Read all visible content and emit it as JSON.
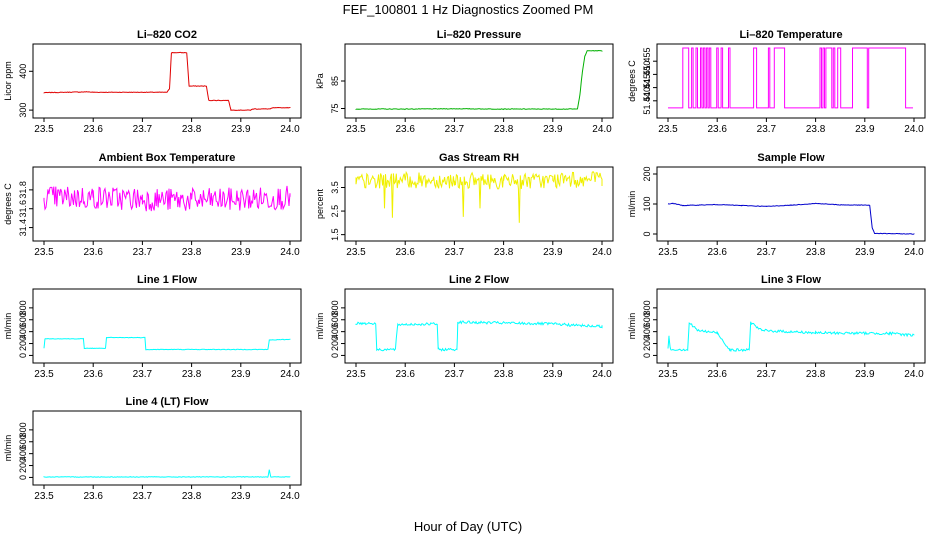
{
  "figure": {
    "title": "FEF_100801  1 Hz Diagnostics Zoomed PM",
    "xlabel": "Hour of Day (UTC)"
  },
  "chart_data": [
    {
      "type": "line",
      "title": "Li–820 CO2",
      "ylabel": "Licor ppm",
      "color": "#e00000",
      "xlim": [
        23.5,
        24.0
      ],
      "ylim": [
        290,
        460
      ],
      "xticks": [
        "23.5",
        "23.6",
        "23.7",
        "23.8",
        "23.9",
        "24.0"
      ],
      "yticks": [
        {
          "v": 300,
          "label": "300"
        },
        {
          "v": 400,
          "label": "400"
        }
      ],
      "series": [
        {
          "x": [
            23.5,
            23.59,
            23.6,
            23.75,
            23.755,
            23.759,
            23.76,
            23.79,
            23.795,
            23.83,
            23.835,
            23.875,
            23.88,
            23.92,
            23.925,
            23.96,
            23.965,
            24.0
          ],
          "y": [
            345,
            347,
            346,
            346,
            355,
            447,
            448,
            448,
            362,
            362,
            325,
            325,
            300,
            300,
            303,
            303,
            306,
            306
          ]
        }
      ]
    },
    {
      "type": "line",
      "title": "Li–820 Pressure",
      "ylabel": "kPa",
      "color": "#00b000",
      "xlim": [
        23.5,
        24.0
      ],
      "ylim": [
        73,
        97
      ],
      "xticks": [
        "23.5",
        "23.6",
        "23.7",
        "23.8",
        "23.9",
        "24.0"
      ],
      "yticks": [
        {
          "v": 75,
          "label": "75"
        },
        {
          "v": 85,
          "label": "85"
        }
      ],
      "series": [
        {
          "x": [
            23.5,
            23.6,
            23.7,
            23.8,
            23.9,
            23.95,
            23.955,
            23.96,
            23.965,
            23.97,
            23.975,
            24.0
          ],
          "y": [
            74.8,
            74.8,
            74.9,
            74.8,
            74.8,
            74.8,
            80,
            88,
            94,
            96,
            96,
            96
          ]
        }
      ]
    },
    {
      "type": "line",
      "title": "Li–820 Temperature",
      "ylabel": "degrees C",
      "color": "#ff00ff",
      "xlim": [
        23.5,
        24.0
      ],
      "ylim": [
        51.435,
        51.46
      ],
      "xticks": [
        "23.5",
        "23.6",
        "23.7",
        "23.8",
        "23.9",
        "24.0"
      ],
      "yticks": [
        {
          "v": 51.44,
          "label": "51.440"
        },
        {
          "v": 51.445,
          "label": "51.445"
        },
        {
          "v": 51.45,
          "label": "51.450"
        },
        {
          "v": 51.455,
          "label": "51.455"
        }
      ],
      "series": [
        {
          "x": [
            23.5,
            23.54,
            23.56,
            23.62,
            23.7,
            23.72,
            23.8,
            23.83,
            23.9,
            24.0
          ],
          "y": [
            51.4373,
            51.4373,
            51.46,
            51.46,
            51.4373,
            51.46,
            51.4373,
            51.46,
            51.4373,
            51.46
          ]
        }
      ]
    },
    {
      "type": "line",
      "title": "Ambient Box Temperature",
      "ylabel": "degrees C",
      "color": "#ff00ff",
      "xlim": [
        23.5,
        24.0
      ],
      "ylim": [
        31.3,
        32.0
      ],
      "xticks": [
        "23.5",
        "23.6",
        "23.7",
        "23.8",
        "23.9",
        "24.0"
      ],
      "yticks": [
        {
          "v": 31.4,
          "label": "31.4"
        },
        {
          "v": 31.6,
          "label": "31.6"
        },
        {
          "v": 31.8,
          "label": "31.8"
        }
      ],
      "series": [
        {
          "x": [
            23.5,
            23.6,
            23.7,
            23.8,
            23.9,
            24.0
          ],
          "y": [
            31.72,
            31.72,
            31.7,
            31.69,
            31.7,
            31.72
          ]
        }
      ]
    },
    {
      "type": "line",
      "title": "Gas Stream RH",
      "ylabel": "percent",
      "color": "#f0f000",
      "xlim": [
        23.5,
        24.0
      ],
      "ylim": [
        1.4,
        4.2
      ],
      "xticks": [
        "23.5",
        "23.6",
        "23.7",
        "23.8",
        "23.9",
        "24.0"
      ],
      "yticks": [
        {
          "v": 1.5,
          "label": "1.5"
        },
        {
          "v": 2.5,
          "label": "2.5"
        },
        {
          "v": 3.5,
          "label": "3.5"
        }
      ],
      "series": [
        {
          "x": [
            23.5,
            23.6,
            23.7,
            23.8,
            23.9,
            24.0
          ],
          "y": [
            3.75,
            3.8,
            3.8,
            3.75,
            3.8,
            3.85
          ]
        }
      ]
    },
    {
      "type": "line",
      "title": "Sample Flow",
      "ylabel": "ml/min",
      "color": "#0000cc",
      "xlim": [
        23.5,
        24.0
      ],
      "ylim": [
        -10,
        210
      ],
      "xticks": [
        "23.5",
        "23.6",
        "23.7",
        "23.8",
        "23.9",
        "24.0"
      ],
      "yticks": [
        {
          "v": 0,
          "label": "0"
        },
        {
          "v": 100,
          "label": "100"
        },
        {
          "v": 200,
          "label": "200"
        }
      ],
      "series": [
        {
          "x": [
            23.5,
            23.51,
            23.53,
            23.6,
            23.65,
            23.7,
            23.75,
            23.8,
            23.85,
            23.91,
            23.915,
            23.92,
            24.0
          ],
          "y": [
            100,
            102,
            95,
            98,
            95,
            92,
            96,
            102,
            97,
            96,
            20,
            2,
            0
          ]
        }
      ]
    },
    {
      "type": "line",
      "title": "Line 1 Flow",
      "ylabel": "ml/min",
      "color": "#00ffff",
      "xlim": [
        23.5,
        24.0
      ],
      "ylim": [
        -60,
        1050
      ],
      "xticks": [
        "23.5",
        "23.6",
        "23.7",
        "23.8",
        "23.9",
        "24.0"
      ],
      "yticks": [
        {
          "v": 0,
          "label": "0"
        },
        {
          "v": 200,
          "label": "200"
        },
        {
          "v": 400,
          "label": "400"
        },
        {
          "v": 600,
          "label": "600"
        },
        {
          "v": 800,
          "label": "800"
        }
      ],
      "series": [
        {
          "x": [
            23.5,
            23.502,
            23.58,
            23.582,
            23.625,
            23.627,
            23.705,
            23.707,
            23.955,
            23.958,
            24.0
          ],
          "y": [
            120,
            280,
            280,
            120,
            120,
            300,
            300,
            100,
            100,
            260,
            270
          ]
        }
      ]
    },
    {
      "type": "line",
      "title": "Line 2 Flow",
      "ylabel": "ml/min",
      "color": "#00ffff",
      "xlim": [
        23.5,
        24.0
      ],
      "ylim": [
        -60,
        1050
      ],
      "xticks": [
        "23.5",
        "23.6",
        "23.7",
        "23.8",
        "23.9",
        "24.0"
      ],
      "yticks": [
        {
          "v": 0,
          "label": "0"
        },
        {
          "v": 200,
          "label": "200"
        },
        {
          "v": 400,
          "label": "400"
        },
        {
          "v": 600,
          "label": "600"
        },
        {
          "v": 800,
          "label": "800"
        }
      ],
      "series": [
        {
          "x": [
            23.5,
            23.54,
            23.542,
            23.58,
            23.585,
            23.665,
            23.667,
            23.705,
            23.707,
            23.9,
            23.96,
            24.0
          ],
          "y": [
            540,
            540,
            100,
            100,
            520,
            530,
            100,
            100,
            560,
            530,
            500,
            490
          ]
        }
      ]
    },
    {
      "type": "line",
      "title": "Line 3 Flow",
      "ylabel": "ml/min",
      "color": "#00ffff",
      "xlim": [
        23.5,
        24.0
      ],
      "ylim": [
        -60,
        1050
      ],
      "xticks": [
        "23.5",
        "23.6",
        "23.7",
        "23.8",
        "23.9",
        "24.0"
      ],
      "yticks": [
        {
          "v": 0,
          "label": "0"
        },
        {
          "v": 200,
          "label": "200"
        },
        {
          "v": 400,
          "label": "400"
        },
        {
          "v": 600,
          "label": "600"
        },
        {
          "v": 800,
          "label": "800"
        }
      ],
      "series": [
        {
          "x": [
            23.5,
            23.502,
            23.505,
            23.54,
            23.543,
            23.56,
            23.6,
            23.625,
            23.628,
            23.665,
            23.668,
            23.69,
            23.8,
            23.95,
            24.0
          ],
          "y": [
            100,
            320,
            100,
            100,
            550,
            420,
            380,
            100,
            90,
            90,
            560,
            420,
            380,
            370,
            340
          ]
        }
      ]
    },
    {
      "type": "line",
      "title": "Line 4 (LT) Flow",
      "ylabel": "ml/min",
      "color": "#00ffff",
      "xlim": [
        23.5,
        24.0
      ],
      "ylim": [
        -60,
        1050
      ],
      "xticks": [
        "23.5",
        "23.6",
        "23.7",
        "23.8",
        "23.9",
        "24.0"
      ],
      "yticks": [
        {
          "v": 0,
          "label": "0"
        },
        {
          "v": 200,
          "label": "200"
        },
        {
          "v": 400,
          "label": "400"
        },
        {
          "v": 600,
          "label": "600"
        },
        {
          "v": 800,
          "label": "800"
        }
      ],
      "series": [
        {
          "x": [
            23.5,
            23.955,
            23.958,
            23.961,
            24.0
          ],
          "y": [
            8,
            8,
            130,
            8,
            8
          ]
        }
      ]
    }
  ]
}
